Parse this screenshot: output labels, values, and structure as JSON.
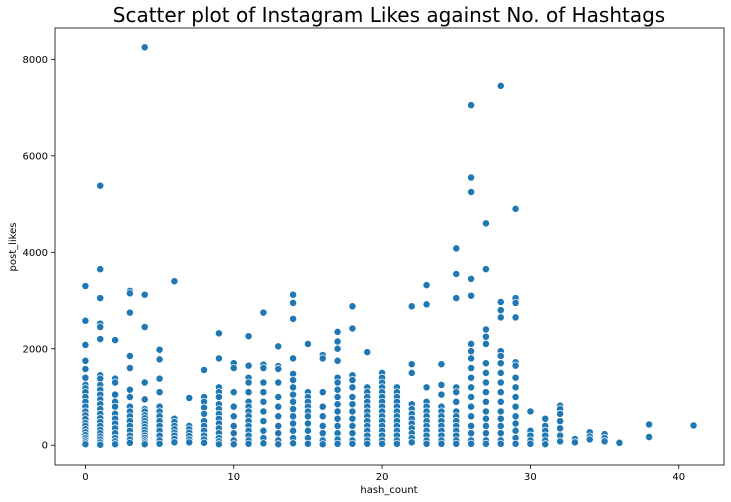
{
  "chart_data": {
    "type": "scatter",
    "title": "Scatter plot of Instagram Likes against No. of Hashtags",
    "xlabel": "hash_count",
    "ylabel": "post_likes",
    "xlim": [
      -2.05,
      43.05
    ],
    "ylim": [
      -410,
      8650
    ],
    "xticks": [
      0,
      10,
      20,
      30,
      40
    ],
    "yticks": [
      0,
      2000,
      4000,
      6000,
      8000
    ],
    "grid": false,
    "color": "#1f77b4",
    "points": [
      [
        0,
        3300
      ],
      [
        0,
        2580
      ],
      [
        0,
        2080
      ],
      [
        0,
        1750
      ],
      [
        0,
        1580
      ],
      [
        0,
        1400
      ],
      [
        0,
        1250
      ],
      [
        0,
        1180
      ],
      [
        0,
        1100
      ],
      [
        0,
        1000
      ],
      [
        0,
        900
      ],
      [
        0,
        800
      ],
      [
        0,
        700
      ],
      [
        0,
        620
      ],
      [
        0,
        540
      ],
      [
        0,
        460
      ],
      [
        0,
        400
      ],
      [
        0,
        330
      ],
      [
        0,
        270
      ],
      [
        0,
        210
      ],
      [
        0,
        150
      ],
      [
        0,
        100
      ],
      [
        0,
        60
      ],
      [
        0,
        20
      ],
      [
        1,
        5380
      ],
      [
        1,
        3650
      ],
      [
        1,
        3050
      ],
      [
        1,
        2520
      ],
      [
        1,
        2450
      ],
      [
        1,
        2200
      ],
      [
        1,
        1450
      ],
      [
        1,
        1380
      ],
      [
        1,
        1250
      ],
      [
        1,
        1150
      ],
      [
        1,
        1050
      ],
      [
        1,
        950
      ],
      [
        1,
        850
      ],
      [
        1,
        750
      ],
      [
        1,
        650
      ],
      [
        1,
        560
      ],
      [
        1,
        480
      ],
      [
        1,
        400
      ],
      [
        1,
        320
      ],
      [
        1,
        250
      ],
      [
        1,
        180
      ],
      [
        1,
        120
      ],
      [
        1,
        60
      ],
      [
        1,
        10
      ],
      [
        2,
        2180
      ],
      [
        2,
        1380
      ],
      [
        2,
        1300
      ],
      [
        2,
        1050
      ],
      [
        2,
        900
      ],
      [
        2,
        800
      ],
      [
        2,
        650
      ],
      [
        2,
        550
      ],
      [
        2,
        450
      ],
      [
        2,
        350
      ],
      [
        2,
        250
      ],
      [
        2,
        150
      ],
      [
        2,
        80
      ],
      [
        2,
        20
      ],
      [
        3,
        3200
      ],
      [
        3,
        3150
      ],
      [
        3,
        2750
      ],
      [
        3,
        1850
      ],
      [
        3,
        1600
      ],
      [
        3,
        1150
      ],
      [
        3,
        1000
      ],
      [
        3,
        800
      ],
      [
        3,
        700
      ],
      [
        3,
        600
      ],
      [
        3,
        500
      ],
      [
        3,
        400
      ],
      [
        3,
        300
      ],
      [
        3,
        200
      ],
      [
        3,
        120
      ],
      [
        3,
        50
      ],
      [
        4,
        8250
      ],
      [
        4,
        3120
      ],
      [
        4,
        2450
      ],
      [
        4,
        1300
      ],
      [
        4,
        950
      ],
      [
        4,
        750
      ],
      [
        4,
        700
      ],
      [
        4,
        620
      ],
      [
        4,
        560
      ],
      [
        4,
        500
      ],
      [
        4,
        440
      ],
      [
        4,
        380
      ],
      [
        4,
        320
      ],
      [
        4,
        260
      ],
      [
        4,
        200
      ],
      [
        4,
        150
      ],
      [
        4,
        100
      ],
      [
        4,
        60
      ],
      [
        4,
        20
      ],
      [
        5,
        1980
      ],
      [
        5,
        1780
      ],
      [
        5,
        1380
      ],
      [
        5,
        1100
      ],
      [
        5,
        800
      ],
      [
        5,
        700
      ],
      [
        5,
        600
      ],
      [
        5,
        500
      ],
      [
        5,
        400
      ],
      [
        5,
        300
      ],
      [
        5,
        200
      ],
      [
        5,
        100
      ],
      [
        5,
        30
      ],
      [
        6,
        3400
      ],
      [
        6,
        550
      ],
      [
        6,
        480
      ],
      [
        6,
        400
      ],
      [
        6,
        330
      ],
      [
        6,
        260
      ],
      [
        6,
        200
      ],
      [
        6,
        130
      ],
      [
        6,
        60
      ],
      [
        7,
        980
      ],
      [
        7,
        400
      ],
      [
        7,
        330
      ],
      [
        7,
        260
      ],
      [
        7,
        190
      ],
      [
        7,
        120
      ],
      [
        7,
        60
      ],
      [
        8,
        1560
      ],
      [
        8,
        1000
      ],
      [
        8,
        900
      ],
      [
        8,
        780
      ],
      [
        8,
        650
      ],
      [
        8,
        500
      ],
      [
        8,
        400
      ],
      [
        8,
        300
      ],
      [
        8,
        200
      ],
      [
        8,
        120
      ],
      [
        8,
        50
      ],
      [
        9,
        2320
      ],
      [
        9,
        1800
      ],
      [
        9,
        1200
      ],
      [
        9,
        1100
      ],
      [
        9,
        1000
      ],
      [
        9,
        850
      ],
      [
        9,
        750
      ],
      [
        9,
        650
      ],
      [
        9,
        550
      ],
      [
        9,
        450
      ],
      [
        9,
        350
      ],
      [
        9,
        250
      ],
      [
        9,
        150
      ],
      [
        9,
        80
      ],
      [
        9,
        20
      ],
      [
        10,
        1700
      ],
      [
        10,
        1600
      ],
      [
        10,
        1100
      ],
      [
        10,
        800
      ],
      [
        10,
        600
      ],
      [
        10,
        400
      ],
      [
        10,
        250
      ],
      [
        10,
        100
      ],
      [
        10,
        20
      ],
      [
        11,
        2260
      ],
      [
        11,
        1650
      ],
      [
        11,
        1400
      ],
      [
        11,
        1300
      ],
      [
        11,
        1100
      ],
      [
        11,
        900
      ],
      [
        11,
        800
      ],
      [
        11,
        700
      ],
      [
        11,
        600
      ],
      [
        11,
        500
      ],
      [
        11,
        400
      ],
      [
        11,
        300
      ],
      [
        11,
        200
      ],
      [
        11,
        100
      ],
      [
        11,
        30
      ],
      [
        12,
        2750
      ],
      [
        12,
        1670
      ],
      [
        12,
        1600
      ],
      [
        12,
        1300
      ],
      [
        12,
        1100
      ],
      [
        12,
        900
      ],
      [
        12,
        700
      ],
      [
        12,
        500
      ],
      [
        12,
        300
      ],
      [
        12,
        150
      ],
      [
        12,
        40
      ],
      [
        13,
        2050
      ],
      [
        13,
        1640
      ],
      [
        13,
        1580
      ],
      [
        13,
        1300
      ],
      [
        13,
        1000
      ],
      [
        13,
        800
      ],
      [
        13,
        600
      ],
      [
        13,
        400
      ],
      [
        13,
        250
      ],
      [
        13,
        100
      ],
      [
        13,
        20
      ],
      [
        14,
        3120
      ],
      [
        14,
        2950
      ],
      [
        14,
        2620
      ],
      [
        14,
        1800
      ],
      [
        14,
        1480
      ],
      [
        14,
        1350
      ],
      [
        14,
        1200
      ],
      [
        14,
        1050
      ],
      [
        14,
        900
      ],
      [
        14,
        750
      ],
      [
        14,
        600
      ],
      [
        14,
        450
      ],
      [
        14,
        300
      ],
      [
        14,
        150
      ],
      [
        14,
        40
      ],
      [
        15,
        2100
      ],
      [
        15,
        1100
      ],
      [
        15,
        1000
      ],
      [
        15,
        900
      ],
      [
        15,
        800
      ],
      [
        15,
        700
      ],
      [
        15,
        600
      ],
      [
        15,
        450
      ],
      [
        15,
        300
      ],
      [
        15,
        150
      ],
      [
        15,
        30
      ],
      [
        16,
        1870
      ],
      [
        16,
        1800
      ],
      [
        16,
        1100
      ],
      [
        16,
        800
      ],
      [
        16,
        600
      ],
      [
        16,
        400
      ],
      [
        16,
        250
      ],
      [
        16,
        100
      ],
      [
        16,
        20
      ],
      [
        17,
        2350
      ],
      [
        17,
        2150
      ],
      [
        17,
        2000
      ],
      [
        17,
        1750
      ],
      [
        17,
        1400
      ],
      [
        17,
        1300
      ],
      [
        17,
        1150
      ],
      [
        17,
        1000
      ],
      [
        17,
        850
      ],
      [
        17,
        700
      ],
      [
        17,
        550
      ],
      [
        17,
        400
      ],
      [
        17,
        250
      ],
      [
        17,
        120
      ],
      [
        17,
        30
      ],
      [
        18,
        2880
      ],
      [
        18,
        2420
      ],
      [
        18,
        1450
      ],
      [
        18,
        1350
      ],
      [
        18,
        1200
      ],
      [
        18,
        1000
      ],
      [
        18,
        850
      ],
      [
        18,
        700
      ],
      [
        18,
        550
      ],
      [
        18,
        400
      ],
      [
        18,
        250
      ],
      [
        18,
        100
      ],
      [
        18,
        30
      ],
      [
        19,
        1930
      ],
      [
        19,
        1200
      ],
      [
        19,
        1100
      ],
      [
        19,
        1000
      ],
      [
        19,
        900
      ],
      [
        19,
        800
      ],
      [
        19,
        700
      ],
      [
        19,
        600
      ],
      [
        19,
        500
      ],
      [
        19,
        400
      ],
      [
        19,
        300
      ],
      [
        19,
        200
      ],
      [
        19,
        100
      ],
      [
        19,
        30
      ],
      [
        20,
        1500
      ],
      [
        20,
        1400
      ],
      [
        20,
        1300
      ],
      [
        20,
        1200
      ],
      [
        20,
        1100
      ],
      [
        20,
        1000
      ],
      [
        20,
        900
      ],
      [
        20,
        800
      ],
      [
        20,
        700
      ],
      [
        20,
        600
      ],
      [
        20,
        500
      ],
      [
        20,
        400
      ],
      [
        20,
        300
      ],
      [
        20,
        200
      ],
      [
        20,
        100
      ],
      [
        20,
        30
      ],
      [
        21,
        1200
      ],
      [
        21,
        1100
      ],
      [
        21,
        1000
      ],
      [
        21,
        900
      ],
      [
        21,
        800
      ],
      [
        21,
        700
      ],
      [
        21,
        600
      ],
      [
        21,
        500
      ],
      [
        21,
        400
      ],
      [
        21,
        300
      ],
      [
        21,
        200
      ],
      [
        21,
        100
      ],
      [
        21,
        30
      ],
      [
        22,
        2880
      ],
      [
        22,
        1680
      ],
      [
        22,
        1500
      ],
      [
        22,
        850
      ],
      [
        22,
        750
      ],
      [
        22,
        650
      ],
      [
        22,
        550
      ],
      [
        22,
        450
      ],
      [
        22,
        350
      ],
      [
        22,
        250
      ],
      [
        22,
        150
      ],
      [
        22,
        60
      ],
      [
        23,
        3320
      ],
      [
        23,
        2920
      ],
      [
        23,
        1200
      ],
      [
        23,
        900
      ],
      [
        23,
        800
      ],
      [
        23,
        700
      ],
      [
        23,
        600
      ],
      [
        23,
        500
      ],
      [
        23,
        400
      ],
      [
        23,
        300
      ],
      [
        23,
        200
      ],
      [
        23,
        100
      ],
      [
        23,
        30
      ],
      [
        24,
        1680
      ],
      [
        24,
        1250
      ],
      [
        24,
        1050
      ],
      [
        24,
        800
      ],
      [
        24,
        700
      ],
      [
        24,
        600
      ],
      [
        24,
        500
      ],
      [
        24,
        400
      ],
      [
        24,
        300
      ],
      [
        24,
        200
      ],
      [
        24,
        100
      ],
      [
        24,
        30
      ],
      [
        25,
        4080
      ],
      [
        25,
        3550
      ],
      [
        25,
        3050
      ],
      [
        25,
        1200
      ],
      [
        25,
        1100
      ],
      [
        25,
        900
      ],
      [
        25,
        700
      ],
      [
        25,
        600
      ],
      [
        25,
        500
      ],
      [
        25,
        400
      ],
      [
        25,
        300
      ],
      [
        25,
        200
      ],
      [
        25,
        100
      ],
      [
        25,
        30
      ],
      [
        26,
        7050
      ],
      [
        26,
        5550
      ],
      [
        26,
        5250
      ],
      [
        26,
        3450
      ],
      [
        26,
        3100
      ],
      [
        26,
        2100
      ],
      [
        26,
        1950
      ],
      [
        26,
        1800
      ],
      [
        26,
        1600
      ],
      [
        26,
        1400
      ],
      [
        26,
        1200
      ],
      [
        26,
        1000
      ],
      [
        26,
        800
      ],
      [
        26,
        600
      ],
      [
        26,
        400
      ],
      [
        26,
        250
      ],
      [
        26,
        100
      ],
      [
        26,
        30
      ],
      [
        27,
        4600
      ],
      [
        27,
        3650
      ],
      [
        27,
        2400
      ],
      [
        27,
        2250
      ],
      [
        27,
        2100
      ],
      [
        27,
        1700
      ],
      [
        27,
        1500
      ],
      [
        27,
        1300
      ],
      [
        27,
        1100
      ],
      [
        27,
        900
      ],
      [
        27,
        700
      ],
      [
        27,
        550
      ],
      [
        27,
        400
      ],
      [
        27,
        250
      ],
      [
        27,
        100
      ],
      [
        27,
        30
      ],
      [
        28,
        7450
      ],
      [
        28,
        2970
      ],
      [
        28,
        2800
      ],
      [
        28,
        2650
      ],
      [
        28,
        1950
      ],
      [
        28,
        1850
      ],
      [
        28,
        1700
      ],
      [
        28,
        1500
      ],
      [
        28,
        1300
      ],
      [
        28,
        1100
      ],
      [
        28,
        900
      ],
      [
        28,
        700
      ],
      [
        28,
        550
      ],
      [
        28,
        400
      ],
      [
        28,
        250
      ],
      [
        28,
        100
      ],
      [
        28,
        30
      ],
      [
        29,
        4900
      ],
      [
        29,
        3050
      ],
      [
        29,
        2950
      ],
      [
        29,
        2650
      ],
      [
        29,
        1720
      ],
      [
        29,
        1650
      ],
      [
        29,
        1400
      ],
      [
        29,
        1200
      ],
      [
        29,
        1000
      ],
      [
        29,
        800
      ],
      [
        29,
        600
      ],
      [
        29,
        450
      ],
      [
        29,
        300
      ],
      [
        29,
        150
      ],
      [
        29,
        30
      ],
      [
        30,
        700
      ],
      [
        30,
        300
      ],
      [
        30,
        200
      ],
      [
        30,
        100
      ],
      [
        30,
        30
      ],
      [
        31,
        550
      ],
      [
        31,
        400
      ],
      [
        31,
        300
      ],
      [
        31,
        200
      ],
      [
        31,
        100
      ],
      [
        31,
        20
      ],
      [
        32,
        820
      ],
      [
        32,
        750
      ],
      [
        32,
        650
      ],
      [
        32,
        500
      ],
      [
        32,
        350
      ],
      [
        32,
        200
      ],
      [
        32,
        80
      ],
      [
        33,
        130
      ],
      [
        33,
        60
      ],
      [
        34,
        270
      ],
      [
        34,
        180
      ],
      [
        34,
        120
      ],
      [
        35,
        230
      ],
      [
        35,
        150
      ],
      [
        35,
        80
      ],
      [
        36,
        50
      ],
      [
        38,
        430
      ],
      [
        38,
        170
      ],
      [
        41,
        410
      ]
    ]
  }
}
